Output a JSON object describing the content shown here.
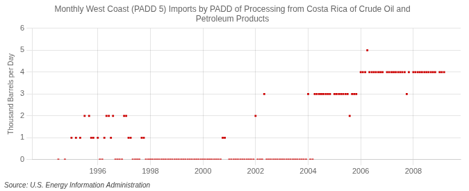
{
  "chart_data": {
    "type": "scatter",
    "title": "Monthly West Coast (PADD 5) Imports by PADD of Processing from Costa Rica of Crude Oil and\nPetroleum Products",
    "ylabel": "Thousand Barrels per Day",
    "annotations": [
      "Source: U.S. Energy Information Administration"
    ],
    "color": "#cc0000",
    "marker": "square",
    "grid": true,
    "xlim": [
      1993.5,
      2009.8
    ],
    "xticks": [
      1996,
      1998,
      2000,
      2002,
      2004,
      2006,
      2008
    ],
    "ylim": [
      0,
      6
    ],
    "yticks": [
      0,
      1,
      2,
      3,
      4,
      5,
      6
    ],
    "x": [
      1994.5,
      1994.75,
      1995.0,
      1995.17,
      1995.33,
      1995.5,
      1995.67,
      1995.75,
      1995.83,
      1996.0,
      1996.08,
      1996.17,
      1996.25,
      1996.33,
      1996.42,
      1996.5,
      1996.58,
      1996.67,
      1996.75,
      1996.83,
      1996.92,
      1997.0,
      1997.08,
      1997.17,
      1997.25,
      1997.33,
      1997.42,
      1997.5,
      1997.58,
      1997.67,
      1997.75,
      1997.83,
      1997.92,
      1998.0,
      1998.08,
      1998.17,
      1998.25,
      1998.33,
      1998.42,
      1998.5,
      1998.58,
      1998.67,
      1998.75,
      1998.83,
      1998.92,
      1999.0,
      1999.08,
      1999.17,
      1999.25,
      1999.33,
      1999.42,
      1999.5,
      1999.58,
      1999.67,
      1999.75,
      1999.83,
      1999.92,
      2000.0,
      2000.08,
      2000.17,
      2000.25,
      2000.33,
      2000.42,
      2000.5,
      2000.58,
      2000.67,
      2000.75,
      2000.83,
      2001.0,
      2001.08,
      2001.17,
      2001.25,
      2001.33,
      2001.42,
      2001.5,
      2001.58,
      2001.67,
      2001.75,
      2001.83,
      2001.92,
      2002.0,
      2002.08,
      2002.17,
      2002.25,
      2002.33,
      2002.42,
      2002.5,
      2002.58,
      2002.67,
      2002.75,
      2002.83,
      2002.92,
      2003.0,
      2003.08,
      2003.17,
      2003.25,
      2003.33,
      2003.42,
      2003.5,
      2003.58,
      2003.67,
      2003.75,
      2003.83,
      2003.92,
      2004.0,
      2004.08,
      2004.17,
      2004.25,
      2004.33,
      2004.42,
      2004.5,
      2004.58,
      2004.67,
      2004.75,
      2004.83,
      2005.0,
      2005.08,
      2005.17,
      2005.25,
      2005.33,
      2005.42,
      2005.5,
      2005.58,
      2005.67,
      2005.75,
      2005.83,
      2006.0,
      2006.08,
      2006.17,
      2006.25,
      2006.33,
      2006.42,
      2006.5,
      2006.58,
      2006.67,
      2006.75,
      2006.83,
      2007.0,
      2007.08,
      2007.17,
      2007.25,
      2007.33,
      2007.42,
      2007.5,
      2007.58,
      2007.67,
      2007.75,
      2007.83,
      2008.0,
      2008.08,
      2008.17,
      2008.25,
      2008.33,
      2008.42,
      2008.5,
      2008.58,
      2008.67,
      2008.75,
      2008.83,
      2009.0,
      2009.08,
      2009.17
    ],
    "values": [
      0,
      0,
      1,
      1,
      1,
      2,
      2,
      1,
      1,
      1,
      0,
      0,
      1,
      2,
      2,
      1,
      2,
      0,
      0,
      0,
      0,
      2,
      2,
      1,
      1,
      0,
      0,
      0,
      0,
      1,
      1,
      0,
      0,
      0,
      0,
      0,
      0,
      0,
      0,
      0,
      0,
      0,
      0,
      0,
      0,
      0,
      0,
      0,
      0,
      0,
      0,
      0,
      0,
      0,
      0,
      0,
      0,
      0,
      0,
      0,
      0,
      0,
      0,
      0,
      0,
      0,
      1,
      1,
      0,
      0,
      0,
      0,
      0,
      0,
      0,
      0,
      0,
      0,
      0,
      0,
      2,
      0,
      0,
      0,
      3,
      0,
      0,
      0,
      0,
      0,
      0,
      0,
      0,
      0,
      0,
      0,
      0,
      0,
      0,
      0,
      0,
      0,
      0,
      0,
      3,
      0,
      0,
      3,
      3,
      3,
      3,
      3,
      3,
      3,
      3,
      3,
      3,
      3,
      3,
      3,
      3,
      3,
      2,
      3,
      3,
      3,
      4,
      4,
      4,
      5,
      4,
      4,
      4,
      4,
      4,
      4,
      4,
      4,
      4,
      4,
      4,
      4,
      4,
      4,
      4,
      4,
      3,
      4,
      4,
      4,
      4,
      4,
      4,
      4,
      4,
      4,
      4,
      4,
      4,
      4,
      4,
      4
    ]
  }
}
